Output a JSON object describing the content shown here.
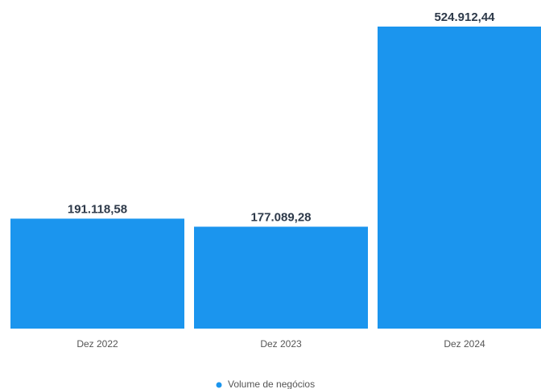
{
  "chart_data": {
    "type": "bar",
    "categories": [
      "Dez 2022",
      "Dez 2023",
      "Dez 2024"
    ],
    "series": [
      {
        "name": "Volume de negócios",
        "color": "#1b95ee",
        "values": [
          191118.58,
          177089.28,
          524912.44
        ],
        "value_labels": [
          "191.118,58",
          "177.089,28",
          "524.912,44"
        ]
      }
    ]
  }
}
